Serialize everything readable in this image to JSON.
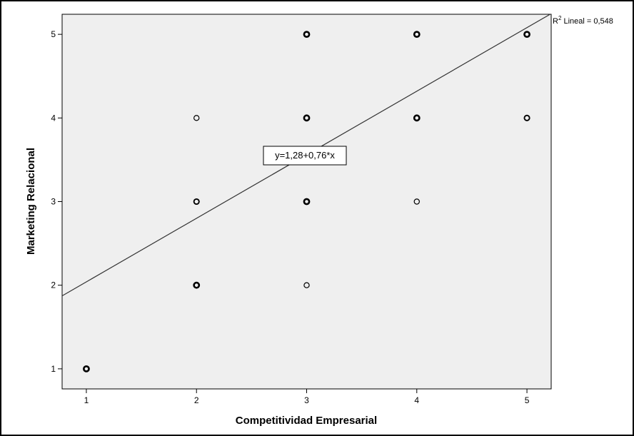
{
  "chart_data": {
    "type": "scatter",
    "xlabel": "Competitividad Empresarial",
    "ylabel": "Marketing Relacional",
    "xlim": [
      0.78,
      5.22
    ],
    "ylim": [
      0.76,
      5.24
    ],
    "x_ticks": [
      1,
      2,
      3,
      4,
      5
    ],
    "y_ticks": [
      1,
      2,
      3,
      4,
      5
    ],
    "grid": false,
    "points": [
      {
        "x": 1,
        "y": 1,
        "weight": "heavy"
      },
      {
        "x": 2,
        "y": 2,
        "weight": "heavy"
      },
      {
        "x": 2,
        "y": 3,
        "weight": "medium"
      },
      {
        "x": 2,
        "y": 4,
        "weight": "light"
      },
      {
        "x": 3,
        "y": 2,
        "weight": "light"
      },
      {
        "x": 3,
        "y": 3,
        "weight": "heavy"
      },
      {
        "x": 3,
        "y": 4,
        "weight": "heavy"
      },
      {
        "x": 3,
        "y": 5,
        "weight": "heavy"
      },
      {
        "x": 4,
        "y": 3,
        "weight": "light"
      },
      {
        "x": 4,
        "y": 4,
        "weight": "heavy"
      },
      {
        "x": 4,
        "y": 5,
        "weight": "heavy"
      },
      {
        "x": 5,
        "y": 4,
        "weight": "medium"
      },
      {
        "x": 5,
        "y": 5,
        "weight": "heavy"
      }
    ],
    "fit": {
      "intercept": 1.28,
      "slope": 0.76
    },
    "equation_label": "y=1,28+0,76*x",
    "r2_prefix": "R",
    "r2_sup": "2",
    "r2_text": " Lineal = 0,548",
    "colors": {
      "plot_background": "#efefef",
      "marker": "#000000",
      "line": "#333333"
    }
  }
}
